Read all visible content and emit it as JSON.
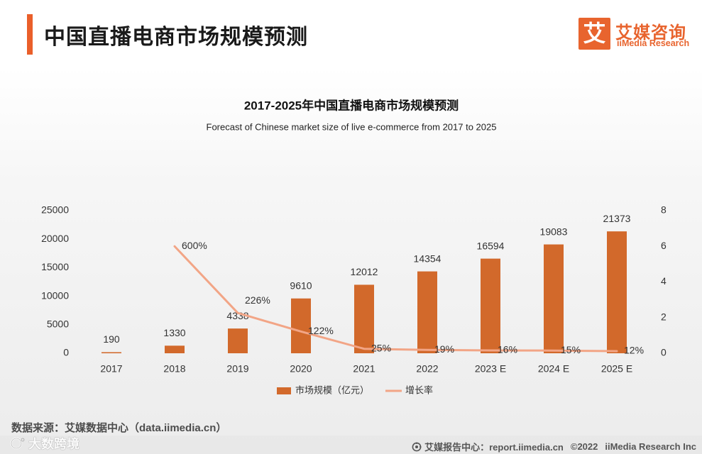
{
  "header": {
    "title": "中国直播电商市场规模预测",
    "accent_color": "#ea5f2a"
  },
  "logo": {
    "mark": "艾",
    "name": "艾媒咨询",
    "name_en": "iiMedia Research",
    "color": "#e8642e"
  },
  "chart_data": {
    "type": "bar",
    "title": "2017-2025年中国直播电商市场规模预测",
    "subtitle": "Forecast of Chinese market size of live e-commerce from 2017 to 2025",
    "categories": [
      "2017",
      "2018",
      "2019",
      "2020",
      "2021",
      "2022",
      "2023 E",
      "2024 E",
      "2025 E"
    ],
    "series": [
      {
        "name": "市场规模（亿元）",
        "type": "bar",
        "axis": "left",
        "color": "#d2692b",
        "values": [
          190,
          1330,
          4338,
          9610,
          12012,
          14354,
          16594,
          19083,
          21373
        ],
        "data_labels": [
          "190",
          "1330",
          "4338",
          "9610",
          "12012",
          "14354",
          "16594",
          "19083",
          "21373"
        ]
      },
      {
        "name": "增长率",
        "type": "line",
        "axis": "right",
        "color": "#f2a586",
        "values": [
          null,
          6,
          2.26,
          1.22,
          0.25,
          0.19,
          0.16,
          0.15,
          0.12
        ],
        "data_labels": [
          null,
          "600%",
          "226%",
          "122%",
          "25%",
          "19%",
          "16%",
          "15%",
          "12%"
        ]
      }
    ],
    "y_left": {
      "lim": [
        0,
        25000
      ],
      "ticks": [
        0,
        5000,
        10000,
        15000,
        20000,
        25000
      ]
    },
    "y_right": {
      "lim": [
        0,
        8
      ],
      "ticks": [
        0,
        2,
        4,
        6,
        8
      ]
    },
    "legend": "bottom",
    "grid": false
  },
  "source": "数据来源：艾媒数据中心（data.iimedia.cn）",
  "watermark": {
    "text": "大数跨境",
    "icon": "watermark-logo-icon"
  },
  "footer": {
    "report_icon": "report-center-icon",
    "report_center": "艾媒报告中心：report.iimedia.cn",
    "copyright": "©2022",
    "company": "iiMedia Research Inc"
  }
}
